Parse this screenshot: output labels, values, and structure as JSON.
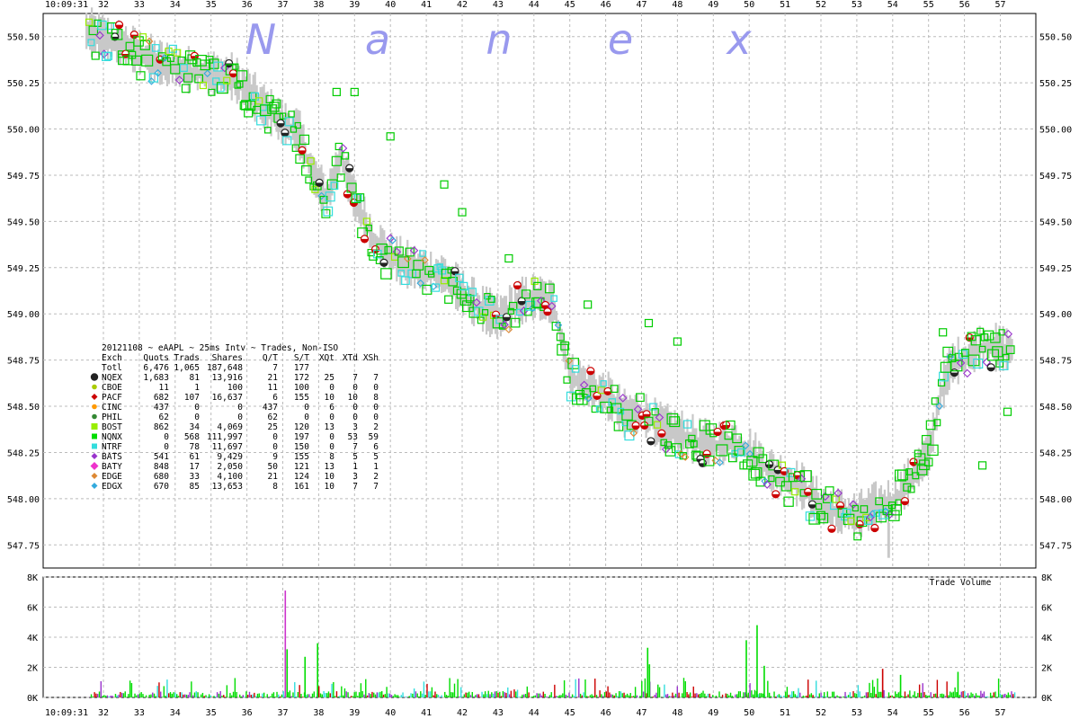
{
  "chart_data": [
    {
      "type": "scatter",
      "watermark": [
        "N",
        "a",
        "n",
        "e",
        "x"
      ],
      "time_start_label": "10:09:31",
      "x_tick_labels": [
        "32",
        "33",
        "34",
        "35",
        "36",
        "37",
        "38",
        "39",
        "40",
        "41",
        "42",
        "43",
        "44",
        "45",
        "46",
        "47",
        "48",
        "49",
        "50",
        "51",
        "52",
        "53",
        "54",
        "55",
        "56",
        "57"
      ],
      "y_tick_labels": [
        "550.50",
        "550.25",
        "550.00",
        "549.75",
        "549.50",
        "549.25",
        "549.00",
        "548.75",
        "548.50",
        "548.25",
        "548.00",
        "547.75"
      ],
      "ylim": [
        547.625,
        550.625
      ],
      "xlim": [
        31.0,
        57.8
      ],
      "grid": true,
      "legend_title": "20121108 ~ eAAPL ~ 25ms Intv ~ Trades, Non-ISO",
      "legend_header": [
        "Exch",
        "Quots",
        "Trads",
        "Shares",
        "Q/T",
        "S/T",
        "XQt",
        "XTd",
        "XSh"
      ],
      "legend_total": [
        "Totl",
        "6,476",
        "1,065",
        "187,648",
        "7",
        "177",
        "",
        "",
        ""
      ],
      "legend_rows": [
        {
          "name": "NQEX",
          "color": "#222222",
          "marker": "circle-big",
          "cells": [
            "1,683",
            "81",
            "13,916",
            "21",
            "172",
            "25",
            "7",
            "7"
          ]
        },
        {
          "name": "CBOE",
          "color": "#aacc00",
          "marker": "circle",
          "cells": [
            "11",
            "1",
            "100",
            "11",
            "100",
            "0",
            "0",
            "0"
          ]
        },
        {
          "name": "PACF",
          "color": "#cc0000",
          "marker": "diamond",
          "cells": [
            "682",
            "107",
            "16,637",
            "6",
            "155",
            "10",
            "10",
            "8"
          ]
        },
        {
          "name": "CINC",
          "color": "#ff9900",
          "marker": "circle",
          "cells": [
            "437",
            "0",
            "0",
            "437",
            "0",
            "6",
            "0",
            "0"
          ]
        },
        {
          "name": "PHIL",
          "color": "#338833",
          "marker": "circle",
          "cells": [
            "62",
            "0",
            "0",
            "62",
            "0",
            "0",
            "0",
            "0"
          ]
        },
        {
          "name": "BOST",
          "color": "#99ee00",
          "marker": "square",
          "cells": [
            "862",
            "34",
            "4,069",
            "25",
            "120",
            "13",
            "3",
            "2"
          ]
        },
        {
          "name": "NQNX",
          "color": "#00dd00",
          "marker": "square-small",
          "cells": [
            "0",
            "568",
            "111,997",
            "0",
            "197",
            "0",
            "53",
            "59"
          ]
        },
        {
          "name": "NTRF",
          "color": "#33dddd",
          "marker": "square-small",
          "cells": [
            "0",
            "78",
            "11,697",
            "0",
            "150",
            "0",
            "7",
            "6"
          ]
        },
        {
          "name": "BATS",
          "color": "#9933cc",
          "marker": "diamond",
          "cells": [
            "541",
            "61",
            "9,429",
            "9",
            "155",
            "8",
            "5",
            "5"
          ]
        },
        {
          "name": "BATY",
          "color": "#ee33cc",
          "marker": "diamond-big",
          "cells": [
            "848",
            "17",
            "2,050",
            "50",
            "121",
            "13",
            "1",
            "1"
          ]
        },
        {
          "name": "EDGE",
          "color": "#dd8833",
          "marker": "diamond",
          "cells": [
            "680",
            "33",
            "4,100",
            "21",
            "124",
            "10",
            "3",
            "2"
          ]
        },
        {
          "name": "EDGX",
          "color": "#33aadd",
          "marker": "diamond",
          "cells": [
            "670",
            "85",
            "13,653",
            "8",
            "161",
            "10",
            "7",
            "7"
          ]
        }
      ],
      "price_path": [
        [
          31.5,
          550.52
        ],
        [
          32.5,
          550.45
        ],
        [
          33.5,
          550.35
        ],
        [
          34.5,
          550.3
        ],
        [
          35.5,
          550.28
        ],
        [
          36.0,
          550.2
        ],
        [
          36.5,
          550.1
        ],
        [
          37.0,
          550.02
        ],
        [
          37.4,
          549.98
        ],
        [
          37.8,
          549.75
        ],
        [
          38.2,
          549.62
        ],
        [
          38.6,
          549.85
        ],
        [
          39.0,
          549.6
        ],
        [
          39.5,
          549.4
        ],
        [
          40.0,
          549.3
        ],
        [
          40.5,
          549.25
        ],
        [
          41.0,
          549.22
        ],
        [
          41.5,
          549.2
        ],
        [
          42.0,
          549.1
        ],
        [
          42.5,
          549.02
        ],
        [
          43.0,
          548.97
        ],
        [
          43.5,
          549.05
        ],
        [
          44.0,
          549.08
        ],
        [
          44.5,
          549.05
        ],
        [
          45.0,
          548.65
        ],
        [
          45.5,
          548.6
        ],
        [
          46.0,
          548.55
        ],
        [
          46.5,
          548.45
        ],
        [
          47.0,
          548.45
        ],
        [
          47.5,
          548.38
        ],
        [
          48.0,
          548.35
        ],
        [
          48.5,
          548.3
        ],
        [
          49.0,
          548.28
        ],
        [
          49.5,
          548.3
        ],
        [
          50.0,
          548.25
        ],
        [
          50.5,
          548.15
        ],
        [
          51.0,
          548.1
        ],
        [
          51.5,
          548.05
        ],
        [
          52.0,
          547.95
        ],
        [
          52.5,
          547.92
        ],
        [
          53.0,
          547.9
        ],
        [
          53.5,
          547.95
        ],
        [
          54.0,
          547.98
        ],
        [
          54.5,
          548.1
        ],
        [
          55.0,
          548.25
        ],
        [
          55.3,
          548.55
        ],
        [
          55.6,
          548.72
        ],
        [
          56.0,
          548.75
        ],
        [
          56.5,
          548.82
        ],
        [
          57.0,
          548.8
        ],
        [
          57.3,
          548.8
        ]
      ]
    },
    {
      "type": "bar",
      "title": "Trade Volume",
      "x_tick_labels": [
        "32",
        "33",
        "34",
        "35",
        "36",
        "37",
        "38",
        "39",
        "40",
        "41",
        "42",
        "43",
        "44",
        "45",
        "46",
        "47",
        "48",
        "49",
        "50",
        "51",
        "52",
        "53",
        "54",
        "55",
        "56",
        "57"
      ],
      "time_start_label": "10:09:31",
      "y_tick_labels": [
        "8K",
        "6K",
        "4K",
        "2K",
        "0K"
      ],
      "ylim": [
        0,
        8000
      ],
      "spikes": [
        {
          "x": 37.05,
          "value": 7100,
          "color": "#cc33cc"
        },
        {
          "x": 37.1,
          "value": 3200,
          "color": "#00dd00"
        },
        {
          "x": 37.6,
          "value": 2700,
          "color": "#00dd00"
        },
        {
          "x": 37.95,
          "value": 3600,
          "color": "#00dd00"
        },
        {
          "x": 47.15,
          "value": 3300,
          "color": "#00dd00"
        },
        {
          "x": 47.2,
          "value": 2200,
          "color": "#00dd00"
        },
        {
          "x": 49.9,
          "value": 3800,
          "color": "#00dd00"
        },
        {
          "x": 50.2,
          "value": 4800,
          "color": "#00dd00"
        },
        {
          "x": 50.4,
          "value": 2100,
          "color": "#00dd00"
        },
        {
          "x": 53.7,
          "value": 1900,
          "color": "#cc0000"
        },
        {
          "x": 54.2,
          "value": 1500,
          "color": "#00dd00"
        },
        {
          "x": 55.8,
          "value": 1700,
          "color": "#00dd00"
        }
      ]
    }
  ]
}
